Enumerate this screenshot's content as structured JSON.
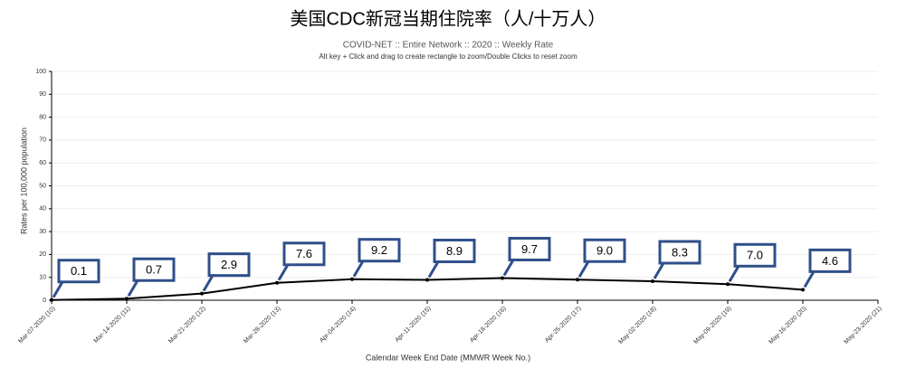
{
  "chart_data": {
    "type": "line",
    "title": "美国CDC新冠当期住院率（人/十万人）",
    "subtitle": "COVID-NET :: Entire Network :: 2020 :: Weekly Rate",
    "note": "Alt key + Click and drag to create rectangle to zoom/Double Clicks to reset zoom",
    "y_label": "Rates per 100,000 population",
    "x_label": "Calendar Week End Date (MMWR Week No.)",
    "categories": [
      "Mar-07-2020 (10)",
      "Mar-14-2020 (11)",
      "Mar-21-2020 (12)",
      "Mar-28-2020 (13)",
      "Apr-04-2020 (14)",
      "Apr-11-2020 (15)",
      "Apr-18-2020 (16)",
      "Apr-25-2020 (17)",
      "May-02-2020 (18)",
      "May-09-2020 (19)",
      "May-16-2020 (20)",
      "May-23-2020 (21)"
    ],
    "values": [
      0.1,
      0.7,
      2.9,
      7.6,
      9.2,
      8.9,
      9.7,
      9.0,
      8.3,
      7.0,
      4.6,
      null
    ],
    "value_labels": [
      "0.1",
      "0.7",
      "2.9",
      "7.6",
      "9.2",
      "8.9",
      "9.7",
      "9.0",
      "8.3",
      "7.0",
      "4.6",
      null
    ],
    "color": "#000000",
    "callout_color": "#2f4f8a",
    "ylim": [
      0,
      100
    ],
    "yticks": [
      0,
      10,
      20,
      30,
      40,
      50,
      60,
      70,
      80,
      90,
      100
    ],
    "grid": true
  }
}
